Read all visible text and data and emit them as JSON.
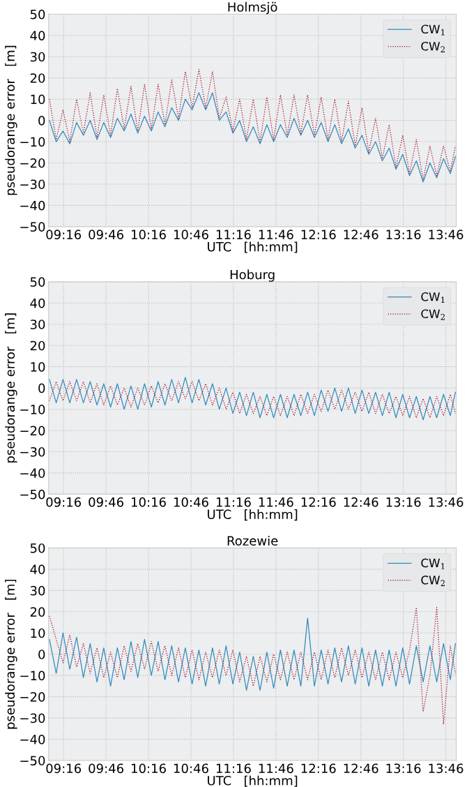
{
  "chart_data": [
    {
      "type": "line",
      "title": "Holmsjö",
      "xlabel": "UTC   [hh:mm]",
      "ylabel": "pseudorange error   [m]",
      "x": [
        9.1,
        9.18,
        9.26,
        9.34,
        9.42,
        9.5,
        9.58,
        9.66,
        9.74,
        9.82,
        9.9,
        9.98,
        10.06,
        10.14,
        10.22,
        10.3,
        10.38,
        10.46,
        10.54,
        10.62,
        10.7,
        10.78,
        10.86,
        10.94,
        11.02,
        11.1,
        11.18,
        11.26,
        11.34,
        11.42,
        11.5,
        11.58,
        11.66,
        11.74,
        11.82,
        11.9,
        11.98,
        12.06,
        12.14,
        12.22,
        12.3,
        12.38,
        12.46,
        12.54,
        12.62,
        12.7,
        12.78,
        12.86,
        12.94,
        13.02,
        13.1,
        13.18,
        13.26,
        13.34,
        13.42,
        13.5,
        13.58,
        13.66,
        13.74,
        13.82,
        13.88
      ],
      "series": [
        {
          "name": "CW$_{1}$",
          "color": "#348abd",
          "line_style": "solid",
          "values": [
            0,
            -10,
            -5,
            -11,
            -1,
            -7,
            0,
            -9,
            -1,
            -8,
            1,
            -5,
            3,
            -6,
            2,
            -5,
            4,
            -3,
            6,
            0,
            10,
            5,
            13,
            5,
            13,
            0,
            4,
            -6,
            0,
            -10,
            -3,
            -11,
            -2,
            -10,
            -2,
            -8,
            1,
            -7,
            0,
            -8,
            -1,
            -10,
            -2,
            -11,
            -4,
            -13,
            -7,
            -16,
            -10,
            -19,
            -13,
            -23,
            -16,
            -26,
            -19,
            -29,
            -20,
            -27,
            -18,
            -25,
            -17
          ]
        },
        {
          "name": "CW$_{2}$",
          "color": "#a60628",
          "line_style": "dotted",
          "values": [
            10,
            -9,
            5,
            -10,
            10,
            -6,
            13,
            -8,
            12,
            -7,
            15,
            -4,
            16,
            -5,
            17,
            -4,
            17,
            -2,
            19,
            1,
            23,
            6,
            24,
            6,
            23,
            1,
            11,
            -5,
            10,
            -9,
            10,
            -10,
            11,
            -9,
            12,
            -7,
            12,
            -6,
            12,
            -7,
            11,
            -9,
            10,
            -10,
            9,
            -12,
            6,
            -15,
            1,
            -18,
            -2,
            -22,
            -7,
            -25,
            -9,
            -28,
            -12,
            -26,
            -12,
            -24,
            -12
          ]
        }
      ],
      "xlim": [
        9.09,
        13.89
      ],
      "xticks": [
        {
          "value": 9.2667,
          "label": "09:16"
        },
        {
          "value": 9.7667,
          "label": "09:46"
        },
        {
          "value": 10.2667,
          "label": "10:16"
        },
        {
          "value": 10.7667,
          "label": "10:46"
        },
        {
          "value": 11.2667,
          "label": "11:16"
        },
        {
          "value": 11.7667,
          "label": "11:46"
        },
        {
          "value": 12.2667,
          "label": "12:16"
        },
        {
          "value": 12.7667,
          "label": "12:46"
        },
        {
          "value": 13.2667,
          "label": "13:16"
        },
        {
          "value": 13.7667,
          "label": "13:46"
        }
      ],
      "ylim": [
        -50,
        50
      ],
      "yticks": [
        -50,
        -40,
        -30,
        -20,
        -10,
        0,
        10,
        20,
        30,
        40,
        50
      ],
      "grid": true,
      "legend": "top right"
    },
    {
      "type": "line",
      "title": "Hoburg",
      "xlabel": "UTC   [hh:mm]",
      "ylabel": "pseudorange error   [m]",
      "x": [
        9.1,
        9.18,
        9.26,
        9.34,
        9.42,
        9.5,
        9.58,
        9.66,
        9.74,
        9.82,
        9.9,
        9.98,
        10.06,
        10.14,
        10.22,
        10.3,
        10.38,
        10.46,
        10.54,
        10.62,
        10.7,
        10.78,
        10.86,
        10.94,
        11.02,
        11.1,
        11.18,
        11.26,
        11.34,
        11.42,
        11.5,
        11.58,
        11.66,
        11.74,
        11.82,
        11.9,
        11.98,
        12.06,
        12.14,
        12.22,
        12.3,
        12.38,
        12.46,
        12.54,
        12.62,
        12.7,
        12.78,
        12.86,
        12.94,
        13.02,
        13.1,
        13.18,
        13.26,
        13.34,
        13.42,
        13.5,
        13.58,
        13.66,
        13.74,
        13.82,
        13.88
      ],
      "series": [
        {
          "name": "CW$_{1}$",
          "color": "#348abd",
          "line_style": "solid",
          "values": [
            4,
            -7,
            4,
            -7,
            4,
            -7,
            3,
            -8,
            2,
            -9,
            2,
            -10,
            1,
            -10,
            2,
            -9,
            3,
            -8,
            4,
            -7,
            5,
            -7,
            4,
            -8,
            2,
            -10,
            0,
            -12,
            -2,
            -13,
            -2,
            -14,
            -3,
            -14,
            -3,
            -14,
            -3,
            -13,
            -2,
            -13,
            -1,
            -11,
            0,
            -11,
            0,
            -12,
            -1,
            -12,
            -2,
            -13,
            -2,
            -14,
            -3,
            -14,
            -4,
            -15,
            -4,
            -14,
            -3,
            -13,
            -2
          ]
        },
        {
          "name": "CW$_{2}$",
          "color": "#a60628",
          "line_style": "dotted",
          "values": [
            -6,
            3,
            -6,
            3,
            -6,
            3,
            -7,
            2,
            -8,
            1,
            -8,
            0,
            -9,
            0,
            -8,
            1,
            -7,
            2,
            -6,
            3,
            -5,
            3,
            -6,
            2,
            -8,
            0,
            -10,
            -2,
            -12,
            -3,
            -12,
            -4,
            -13,
            -4,
            -13,
            -4,
            -13,
            -3,
            -12,
            -3,
            -11,
            -1,
            -10,
            -1,
            -10,
            -2,
            -11,
            -2,
            -12,
            -3,
            -12,
            -4,
            -13,
            -4,
            -14,
            -5,
            -14,
            -4,
            -13,
            -3,
            -12
          ]
        }
      ],
      "xlim": [
        9.09,
        13.89
      ],
      "xticks": [
        {
          "value": 9.2667,
          "label": "09:16"
        },
        {
          "value": 9.7667,
          "label": "09:46"
        },
        {
          "value": 10.2667,
          "label": "10:16"
        },
        {
          "value": 10.7667,
          "label": "10:46"
        },
        {
          "value": 11.2667,
          "label": "11:16"
        },
        {
          "value": 11.7667,
          "label": "11:46"
        },
        {
          "value": 12.2667,
          "label": "12:16"
        },
        {
          "value": 12.7667,
          "label": "12:46"
        },
        {
          "value": 13.2667,
          "label": "13:16"
        },
        {
          "value": 13.7667,
          "label": "13:46"
        }
      ],
      "ylim": [
        -50,
        50
      ],
      "yticks": [
        -50,
        -40,
        -30,
        -20,
        -10,
        0,
        10,
        20,
        30,
        40,
        50
      ],
      "grid": true,
      "legend": "top right"
    },
    {
      "type": "line",
      "title": "Rozewie",
      "xlabel": "UTC   [hh:mm]",
      "ylabel": "pseudorange error   [m]",
      "x": [
        9.1,
        9.18,
        9.26,
        9.34,
        9.42,
        9.5,
        9.58,
        9.66,
        9.74,
        9.82,
        9.9,
        9.98,
        10.06,
        10.14,
        10.22,
        10.3,
        10.38,
        10.46,
        10.54,
        10.62,
        10.7,
        10.78,
        10.86,
        10.94,
        11.02,
        11.1,
        11.18,
        11.26,
        11.34,
        11.42,
        11.5,
        11.58,
        11.66,
        11.74,
        11.82,
        11.9,
        11.98,
        12.06,
        12.14,
        12.22,
        12.3,
        12.38,
        12.46,
        12.54,
        12.62,
        12.7,
        12.78,
        12.86,
        12.94,
        13.02,
        13.1,
        13.18,
        13.26,
        13.34,
        13.42,
        13.5,
        13.58,
        13.66,
        13.74,
        13.82,
        13.88
      ],
      "series": [
        {
          "name": "CW$_{1}$",
          "color": "#348abd",
          "line_style": "solid",
          "values": [
            7,
            -9,
            10,
            -7,
            8,
            -11,
            5,
            -13,
            3,
            -15,
            3,
            -12,
            6,
            -11,
            7,
            -10,
            6,
            -12,
            4,
            -13,
            3,
            -14,
            2,
            -15,
            3,
            -14,
            4,
            -14,
            1,
            -17,
            -1,
            -17,
            1,
            -16,
            2,
            -15,
            2,
            -15,
            17,
            -15,
            2,
            -14,
            3,
            -13,
            4,
            -14,
            3,
            -15,
            2,
            -15,
            2,
            -15,
            3,
            -14,
            4,
            -13,
            4,
            -13,
            5,
            -12,
            5
          ]
        },
        {
          "name": "CW$_{2}$",
          "color": "#a60628",
          "line_style": "dotted",
          "values": [
            18,
            7,
            -4,
            9,
            -6,
            5,
            -9,
            3,
            -11,
            1,
            -11,
            4,
            -8,
            5,
            -7,
            6,
            -8,
            4,
            -10,
            3,
            -11,
            2,
            -12,
            1,
            -11,
            2,
            -10,
            2,
            -13,
            -1,
            -15,
            -1,
            -13,
            0,
            -12,
            1,
            -12,
            1,
            -12,
            1,
            -12,
            2,
            -11,
            3,
            -10,
            2,
            -11,
            1,
            -12,
            1,
            -12,
            1,
            -11,
            2,
            22,
            -27,
            -10,
            22,
            -33,
            4,
            -9
          ]
        }
      ],
      "xlim": [
        9.09,
        13.89
      ],
      "xticks": [
        {
          "value": 9.2667,
          "label": "09:16"
        },
        {
          "value": 9.7667,
          "label": "09:46"
        },
        {
          "value": 10.2667,
          "label": "10:16"
        },
        {
          "value": 10.7667,
          "label": "10:46"
        },
        {
          "value": 11.2667,
          "label": "11:16"
        },
        {
          "value": 11.7667,
          "label": "11:46"
        },
        {
          "value": 12.2667,
          "label": "12:16"
        },
        {
          "value": 12.7667,
          "label": "12:46"
        },
        {
          "value": 13.2667,
          "label": "13:16"
        },
        {
          "value": 13.7667,
          "label": "13:46"
        }
      ],
      "ylim": [
        -50,
        50
      ],
      "yticks": [
        -50,
        -40,
        -30,
        -20,
        -10,
        0,
        10,
        20,
        30,
        40,
        50
      ],
      "grid": true,
      "legend": "top right"
    }
  ]
}
